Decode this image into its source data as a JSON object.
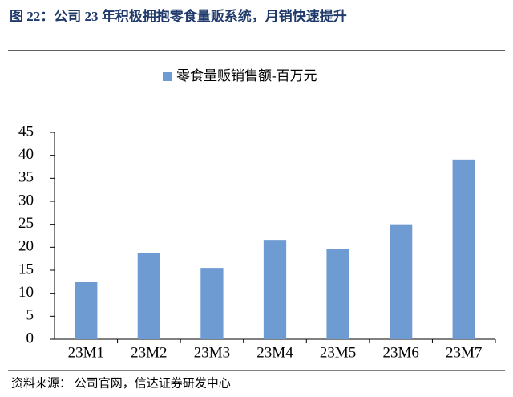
{
  "chart_data": {
    "type": "bar",
    "title": "图 22：公司 23 年积极拥抱零食量贩系统，月销快速提升",
    "source": "资料来源：  公司官网，信达证券研发中心",
    "categories": [
      "23M1",
      "23M2",
      "23M3",
      "23M4",
      "23M5",
      "23M6",
      "23M7"
    ],
    "series": [
      {
        "name": "零食量贩销售额-百万元",
        "color": "#6e9bd1",
        "values": [
          12.4,
          18.7,
          15.5,
          21.6,
          19.7,
          25.0,
          39.1
        ]
      }
    ],
    "ylim": [
      0,
      45
    ],
    "yticks": [
      0,
      5,
      10,
      15,
      20,
      25,
      30,
      35,
      40,
      45
    ],
    "grid": false
  }
}
